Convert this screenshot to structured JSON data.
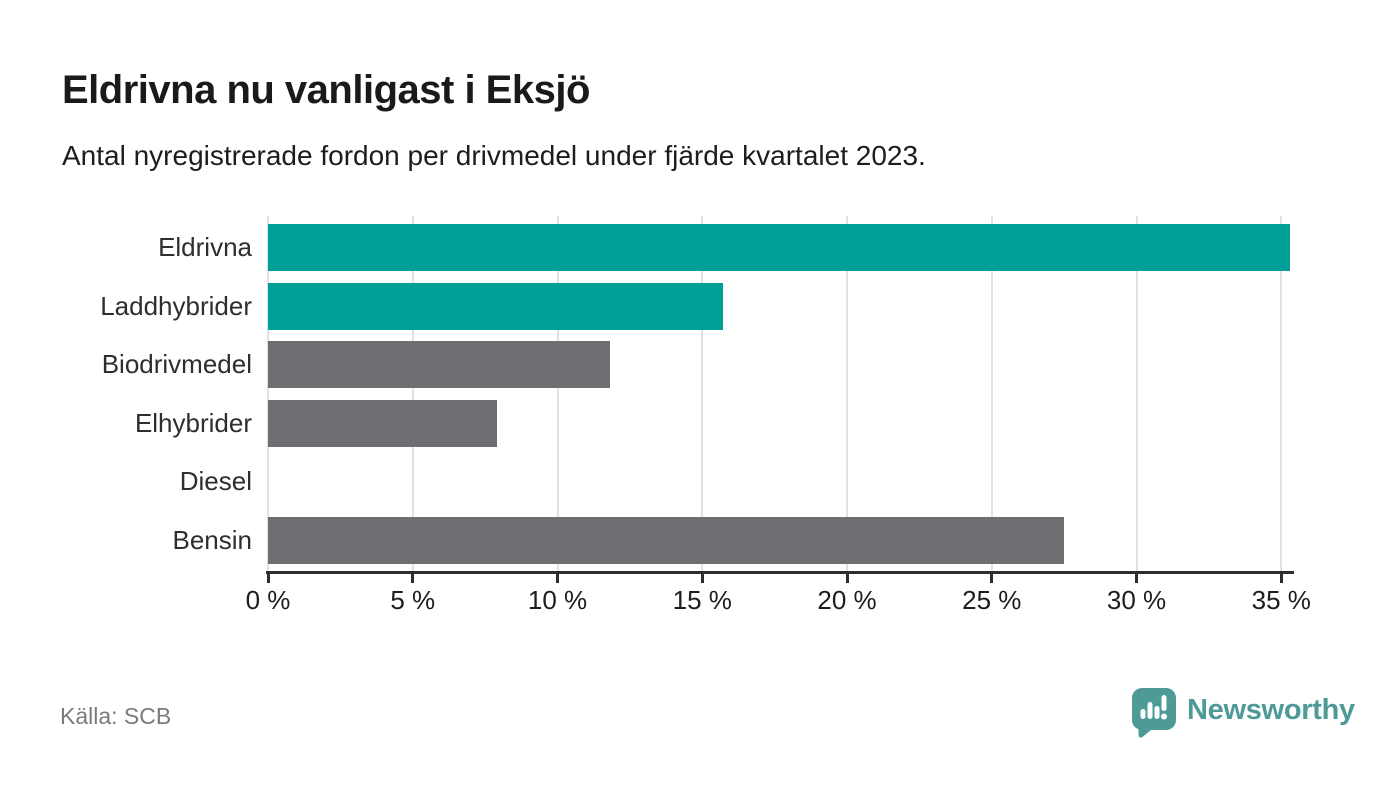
{
  "header": {
    "title": "Eldrivna nu vanligast i Eksjö",
    "subtitle": "Antal nyregistrerade fordon per drivmedel under fjärde kvartalet 2023."
  },
  "chart_data": {
    "type": "bar",
    "orientation": "horizontal",
    "title": "Eldrivna nu vanligast i Eksjö",
    "subtitle": "Antal nyregistrerade fordon per drivmedel under fjärde kvartalet 2023.",
    "categories": [
      "Eldrivna",
      "Laddhybrider",
      "Biodrivmedel",
      "Elhybrider",
      "Diesel",
      "Bensin"
    ],
    "values": [
      35.3,
      15.7,
      11.8,
      7.9,
      0,
      27.5
    ],
    "unit": "%",
    "bar_colors": [
      "#00a099",
      "#00a099",
      "#6e6e73",
      "#6e6e73",
      "#6e6e73",
      "#6e6e73"
    ],
    "highlight_color": "#00a099",
    "default_color": "#6e6e73",
    "x_tick_values": [
      0,
      5,
      10,
      15,
      20,
      25,
      30,
      35
    ],
    "x_tick_labels": [
      "0 %",
      "5 %",
      "10 %",
      "15 %",
      "20 %",
      "25 %",
      "30 %",
      "35 %"
    ],
    "xlim": [
      0,
      35.4
    ],
    "grid": true,
    "legend": false,
    "gridline_color": "#e2e2e2",
    "axis_color": "#2e2e2e"
  },
  "footer": {
    "source": "Källa: SCB",
    "brand": "Newsworthy",
    "brand_color": "#4d9a97"
  }
}
